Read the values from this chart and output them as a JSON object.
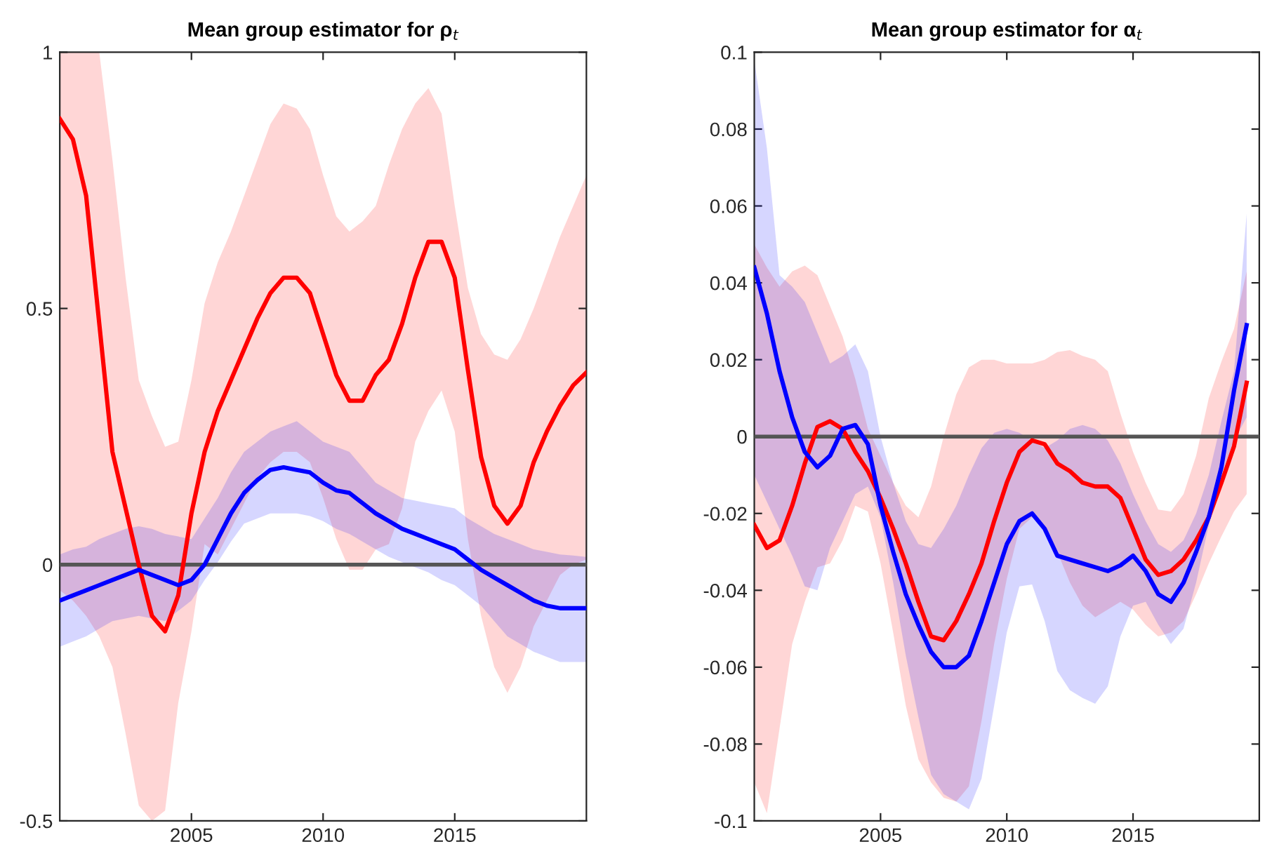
{
  "chart_data": [
    {
      "type": "line",
      "title": "Mean group estimator for ρ$_{t}$",
      "x": [
        2000,
        2000.5,
        2001,
        2001.5,
        2002,
        2002.5,
        2003,
        2003.5,
        2004,
        2004.5,
        2005,
        2005.5,
        2006,
        2006.5,
        2007,
        2007.5,
        2008,
        2008.5,
        2009,
        2009.5,
        2010,
        2010.5,
        2011,
        2011.5,
        2012,
        2012.5,
        2013,
        2013.5,
        2014,
        2014.5,
        2015,
        2015.5,
        2016,
        2016.5,
        2017,
        2017.5,
        2018,
        2018.5,
        2019,
        2019.5,
        2020
      ],
      "xlim": [
        2000,
        2020
      ],
      "xticks": [
        2005,
        2010,
        2015
      ],
      "ylim": [
        -0.5,
        1
      ],
      "yticks": [
        -0.5,
        0,
        0.5,
        1
      ],
      "series": [
        {
          "color": "#ff0000",
          "values": [
            0.87,
            0.83,
            0.72,
            0.47,
            0.22,
            0.11,
            0.0,
            -0.1,
            -0.13,
            -0.06,
            0.1,
            0.22,
            0.3,
            0.36,
            0.42,
            0.48,
            0.53,
            0.56,
            0.56,
            0.53,
            0.45,
            0.37,
            0.32,
            0.32,
            0.37,
            0.4,
            0.47,
            0.56,
            0.63,
            0.63,
            0.56,
            0.38,
            0.21,
            0.115,
            0.08,
            0.115,
            0.2,
            0.26,
            0.31,
            0.35,
            0.375
          ],
          "upper": [
            1.0,
            1.0,
            1.0,
            1.0,
            0.79,
            0.56,
            0.36,
            0.29,
            0.23,
            0.24,
            0.36,
            0.51,
            0.59,
            0.65,
            0.72,
            0.79,
            0.86,
            0.9,
            0.89,
            0.85,
            0.76,
            0.68,
            0.65,
            0.67,
            0.7,
            0.78,
            0.85,
            0.9,
            0.93,
            0.88,
            0.7,
            0.54,
            0.45,
            0.41,
            0.4,
            0.44,
            0.5,
            0.57,
            0.64,
            0.7,
            0.76
          ],
          "lower": [
            -0.05,
            -0.07,
            -0.1,
            -0.14,
            -0.2,
            -0.33,
            -0.47,
            -0.5,
            -0.48,
            -0.27,
            -0.13,
            0.04,
            0.02,
            0.07,
            0.12,
            0.17,
            0.2,
            0.22,
            0.22,
            0.2,
            0.13,
            0.05,
            -0.01,
            -0.01,
            0.03,
            0.04,
            0.11,
            0.24,
            0.3,
            0.34,
            0.26,
            0.05,
            -0.1,
            -0.2,
            -0.25,
            -0.2,
            -0.12,
            -0.07,
            -0.02,
            0.0,
            0.01
          ]
        },
        {
          "color": "#0000ff",
          "values": [
            -0.07,
            -0.06,
            -0.05,
            -0.04,
            -0.03,
            -0.02,
            -0.01,
            -0.02,
            -0.03,
            -0.04,
            -0.03,
            0.0,
            0.05,
            0.1,
            0.14,
            0.165,
            0.185,
            0.19,
            0.185,
            0.18,
            0.16,
            0.145,
            0.14,
            0.12,
            0.1,
            0.085,
            0.07,
            0.06,
            0.05,
            0.04,
            0.03,
            0.01,
            -0.01,
            -0.025,
            -0.04,
            -0.055,
            -0.07,
            -0.08,
            -0.085,
            -0.085,
            -0.085
          ],
          "upper": [
            0.02,
            0.03,
            0.035,
            0.05,
            0.06,
            0.07,
            0.075,
            0.07,
            0.06,
            0.055,
            0.05,
            0.09,
            0.13,
            0.18,
            0.22,
            0.24,
            0.26,
            0.27,
            0.28,
            0.26,
            0.24,
            0.23,
            0.22,
            0.19,
            0.16,
            0.145,
            0.13,
            0.125,
            0.12,
            0.115,
            0.11,
            0.09,
            0.075,
            0.06,
            0.05,
            0.04,
            0.03,
            0.025,
            0.02,
            0.018,
            0.015
          ],
          "lower": [
            -0.16,
            -0.15,
            -0.14,
            -0.125,
            -0.11,
            -0.105,
            -0.1,
            -0.105,
            -0.11,
            -0.09,
            -0.07,
            -0.03,
            0.005,
            0.045,
            0.08,
            0.09,
            0.1,
            0.1,
            0.1,
            0.095,
            0.085,
            0.07,
            0.06,
            0.045,
            0.03,
            0.015,
            0.005,
            -0.005,
            -0.015,
            -0.03,
            -0.04,
            -0.06,
            -0.08,
            -0.11,
            -0.14,
            -0.155,
            -0.17,
            -0.18,
            -0.19,
            -0.19,
            -0.19
          ]
        }
      ],
      "ref_lines": [
        {
          "axis": "y",
          "value": 0,
          "color": "#555555"
        }
      ]
    },
    {
      "type": "line",
      "title": "Mean group estimator for α$_{t}$",
      "x": [
        2000,
        2000.5,
        2001,
        2001.5,
        2002,
        2002.5,
        2003,
        2003.5,
        2004,
        2004.5,
        2005,
        2005.5,
        2006,
        2006.5,
        2007,
        2007.5,
        2008,
        2008.5,
        2009,
        2009.5,
        2010,
        2010.5,
        2011,
        2011.5,
        2012,
        2012.5,
        2013,
        2013.5,
        2014,
        2014.5,
        2015,
        2015.5,
        2016,
        2016.5,
        2017,
        2017.5,
        2018,
        2018.5,
        2019,
        2019.5
      ],
      "xlim": [
        2000,
        2020
      ],
      "xticks": [
        2005,
        2010,
        2015
      ],
      "ylim": [
        -0.1,
        0.1
      ],
      "yticks": [
        -0.1,
        -0.08,
        -0.06,
        -0.04,
        -0.02,
        0,
        0.02,
        0.04,
        0.06,
        0.08,
        0.1
      ],
      "series": [
        {
          "color": "#ff0000",
          "values": [
            -0.023,
            -0.029,
            -0.027,
            -0.018,
            -0.007,
            0.0025,
            0.004,
            0.002,
            -0.004,
            -0.009,
            -0.016,
            -0.024,
            -0.033,
            -0.043,
            -0.052,
            -0.053,
            -0.048,
            -0.041,
            -0.033,
            -0.022,
            -0.012,
            -0.004,
            -0.001,
            -0.002,
            -0.007,
            -0.009,
            -0.012,
            -0.013,
            -0.013,
            -0.016,
            -0.024,
            -0.032,
            -0.036,
            -0.035,
            -0.032,
            -0.027,
            -0.021,
            -0.012,
            -0.0025,
            0.014
          ],
          "upper": [
            0.05,
            0.044,
            0.039,
            0.043,
            0.0445,
            0.042,
            0.034,
            0.026,
            0.015,
            0.002,
            -0.005,
            -0.012,
            -0.018,
            -0.021,
            -0.013,
            0.0,
            0.011,
            0.018,
            0.02,
            0.02,
            0.019,
            0.019,
            0.019,
            0.02,
            0.022,
            0.0225,
            0.021,
            0.02,
            0.017,
            0.006,
            -0.004,
            -0.012,
            -0.019,
            -0.0195,
            -0.015,
            -0.005,
            0.01,
            0.0195,
            0.028,
            0.043
          ],
          "lower": [
            -0.09,
            -0.098,
            -0.076,
            -0.054,
            -0.043,
            -0.034,
            -0.033,
            -0.027,
            -0.018,
            -0.0195,
            -0.033,
            -0.051,
            -0.07,
            -0.084,
            -0.09,
            -0.094,
            -0.095,
            -0.091,
            -0.074,
            -0.054,
            -0.037,
            -0.024,
            -0.021,
            -0.024,
            -0.03,
            -0.038,
            -0.044,
            -0.047,
            -0.045,
            -0.043,
            -0.045,
            -0.049,
            -0.052,
            -0.051,
            -0.048,
            -0.041,
            -0.033,
            -0.026,
            -0.0195,
            -0.015
          ]
        },
        {
          "color": "#0000ff",
          "values": [
            0.044,
            0.032,
            0.017,
            0.005,
            -0.004,
            -0.008,
            -0.005,
            0.002,
            0.003,
            -0.002,
            -0.018,
            -0.03,
            -0.041,
            -0.049,
            -0.056,
            -0.06,
            -0.06,
            -0.057,
            -0.048,
            -0.038,
            -0.028,
            -0.022,
            -0.02,
            -0.024,
            -0.031,
            -0.032,
            -0.033,
            -0.034,
            -0.035,
            -0.0335,
            -0.031,
            -0.035,
            -0.041,
            -0.043,
            -0.038,
            -0.03,
            -0.021,
            -0.008,
            0.012,
            0.029
          ],
          "upper": [
            0.098,
            0.075,
            0.042,
            0.039,
            0.035,
            0.027,
            0.019,
            0.021,
            0.024,
            0.017,
            0.0,
            -0.012,
            -0.022,
            -0.028,
            -0.029,
            -0.024,
            -0.018,
            -0.01,
            -0.003,
            0.001,
            0.002,
            0.001,
            -0.001,
            -0.003,
            -0.001,
            0.002,
            0.003,
            0.002,
            -0.001,
            -0.007,
            -0.015,
            -0.022,
            -0.028,
            -0.03,
            -0.027,
            -0.02,
            -0.01,
            0.004,
            0.017,
            0.058
          ],
          "lower": [
            -0.01,
            -0.017,
            -0.024,
            -0.031,
            -0.039,
            -0.04,
            -0.029,
            -0.022,
            -0.015,
            -0.013,
            -0.021,
            -0.038,
            -0.057,
            -0.073,
            -0.088,
            -0.093,
            -0.095,
            -0.097,
            -0.089,
            -0.07,
            -0.051,
            -0.039,
            -0.0385,
            -0.048,
            -0.061,
            -0.066,
            -0.068,
            -0.0695,
            -0.065,
            -0.052,
            -0.044,
            -0.043,
            -0.049,
            -0.054,
            -0.05,
            -0.038,
            -0.023,
            -0.01,
            -0.001,
            0.005
          ]
        }
      ],
      "ref_lines": [
        {
          "axis": "y",
          "value": 0,
          "color": "#555555"
        }
      ]
    }
  ]
}
